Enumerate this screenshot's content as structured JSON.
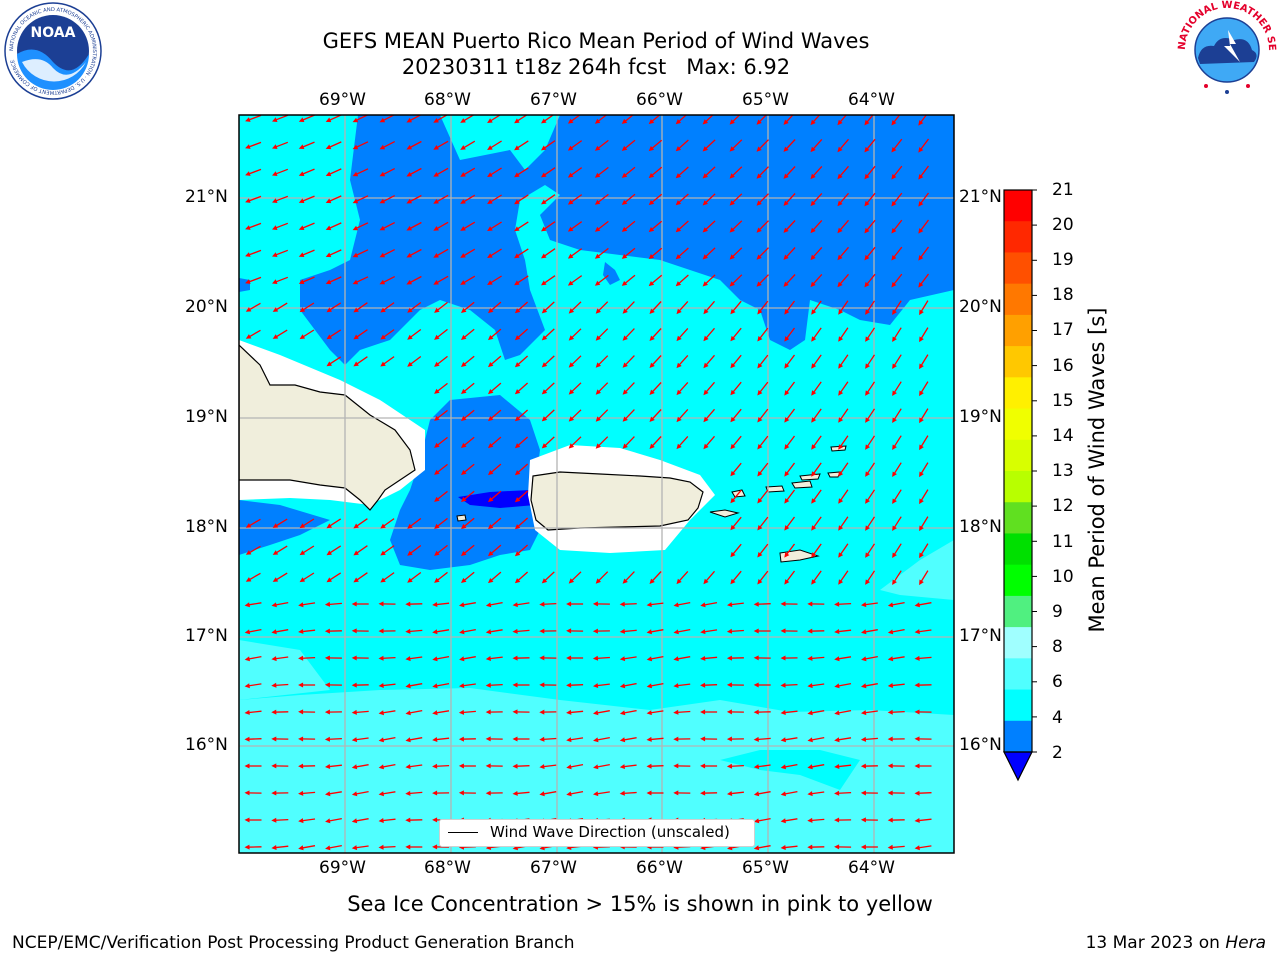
{
  "title_line1": "GEFS MEAN Puerto Rico Mean Period of Wind Waves",
  "title_line2": "20230311 t18z 264h fcst   Max: 6.92",
  "lon_labels": [
    "69°W",
    "68°W",
    "67°W",
    "66°W",
    "65°W",
    "64°W"
  ],
  "lat_labels": [
    "21°N",
    "20°N",
    "19°N",
    "18°N",
    "17°N",
    "16°N"
  ],
  "colorbar": {
    "title": "Mean Period of Wind Waves [s]",
    "ticks": [
      "21",
      "20",
      "19",
      "18",
      "17",
      "16",
      "15",
      "14",
      "13",
      "12",
      "11",
      "10",
      "9",
      "8",
      "6",
      "4",
      "2"
    ],
    "colors": [
      "#ff0000",
      "#ff2800",
      "#ff5000",
      "#ff7800",
      "#ffa000",
      "#ffc800",
      "#fff000",
      "#f0ff00",
      "#d8ff00",
      "#b8ff00",
      "#60e020",
      "#00e000",
      "#00ff00",
      "#50f080",
      "#a0ffff",
      "#50ffff",
      "#00ffff",
      "#0080ff",
      "#0000ff"
    ]
  },
  "legend_label": "Wind Wave Direction (unscaled)",
  "sea_ice_note": "Sea Ice Concentration > 15% is shown in pink to yellow",
  "footer_left": "NCEP/EMC/Verification Post Processing Product Generation Branch",
  "footer_date": "13 Mar 2023 on",
  "footer_machine": "Hera",
  "logos": {
    "noaa_text": "NOAA",
    "noaa_ring": "NATIONAL OCEANIC AND ATMOSPHERIC ADMINISTRATION · U.S. DEPARTMENT OF COMMERCE",
    "nws_ring": "NATIONAL WEATHER SERVICE"
  },
  "colors": {
    "land": "#f0eedc",
    "period_2_4": "#0080ff",
    "period_4_6": "#00ffff",
    "period_6_8": "#50ffff",
    "period_below_2": "#0000ff",
    "arrow": "#ff0000",
    "grid": "#b4b4b4"
  }
}
